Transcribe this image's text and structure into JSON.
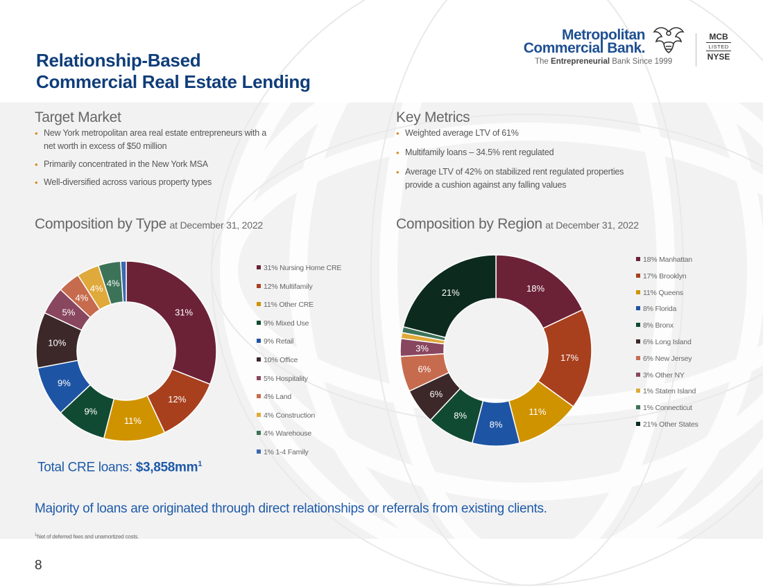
{
  "title": {
    "line1": "Relationship-Based",
    "line2": "Commercial Real Estate Lending"
  },
  "logo": {
    "name_line1": "Metropolitan",
    "name_line2": "Commercial Bank.",
    "tagline_pre": "The",
    "tagline_bold": "Entrepreneurial",
    "tagline_post": "Bank Since 1999",
    "ticker": "MCB",
    "listed": "LISTED",
    "exchange": "NYSE"
  },
  "target_market": {
    "heading": "Target Market",
    "bullets": [
      "New York metropolitan area real estate entrepreneurs with a net worth in excess of $50 million",
      "Primarily concentrated in the New York MSA",
      "Well-diversified across various property types"
    ]
  },
  "key_metrics": {
    "heading": "Key Metrics",
    "bullets": [
      "Weighted average LTV of 61%",
      "Multifamily loans – 34.5% rent regulated",
      "Average LTV of 42% on stabilized rent regulated properties provide a cushion against any falling values"
    ]
  },
  "composition_type": {
    "heading": "Composition by Type",
    "subheading": "at December 31, 2022"
  },
  "composition_region": {
    "heading": "Composition by Region",
    "subheading": "at December 31, 2022"
  },
  "chart_data": [
    {
      "type": "donut",
      "title": "Composition by Type",
      "subtitle": "at December 31, 2022",
      "unit": "%",
      "series": [
        {
          "legend": "31% Nursing Home CRE",
          "label": "31%",
          "value": 31,
          "color": "#6b2237"
        },
        {
          "legend": "12% Multifamily",
          "label": "12%",
          "value": 12,
          "color": "#a8401e"
        },
        {
          "legend": "11% Other CRE",
          "label": "11%",
          "value": 11,
          "color": "#d09300"
        },
        {
          "legend": "9% Mixed Use",
          "label": "9%",
          "value": 9,
          "color": "#114a32"
        },
        {
          "legend": "9% Retail",
          "label": "9%",
          "value": 9,
          "color": "#1e54a4"
        },
        {
          "legend": "10% Office",
          "label": "10%",
          "value": 10,
          "color": "#3c2829"
        },
        {
          "legend": "5% Hospitality",
          "label": "5%",
          "value": 5,
          "color": "#89465f"
        },
        {
          "legend": "4% Land",
          "label": "4%",
          "value": 4,
          "color": "#c76b4e"
        },
        {
          "legend": "4% Construction",
          "label": "4%",
          "value": 4,
          "color": "#e0a93b"
        },
        {
          "legend": "4% Warehouse",
          "label": "4%",
          "value": 4,
          "color": "#3c7358"
        },
        {
          "legend": "1% 1-4 Family",
          "label": "",
          "value": 1,
          "color": "#3e68b0"
        }
      ]
    },
    {
      "type": "donut",
      "title": "Composition by Region",
      "subtitle": "at December 31, 2022",
      "unit": "%",
      "series": [
        {
          "legend": "18% Manhattan",
          "label": "18%",
          "value": 18,
          "color": "#6b2237"
        },
        {
          "legend": "17% Brooklyn",
          "label": "17%",
          "value": 17,
          "color": "#a8401e"
        },
        {
          "legend": "11% Queens",
          "label": "11%",
          "value": 11,
          "color": "#d09300"
        },
        {
          "legend": "8% Florida",
          "label": "8%",
          "value": 8,
          "color": "#1e54a4"
        },
        {
          "legend": "8% Bronx",
          "label": "8%",
          "value": 8,
          "color": "#114a32"
        },
        {
          "legend": "6% Long Island",
          "label": "6%",
          "value": 6,
          "color": "#3c2829"
        },
        {
          "legend": "6% New Jersey",
          "label": "6%",
          "value": 6,
          "color": "#c76b4e"
        },
        {
          "legend": "3% Other NY",
          "label": "3%",
          "value": 3,
          "color": "#89465f"
        },
        {
          "legend": "1% Staten Island",
          "label": "",
          "value": 1,
          "color": "#e0a93b"
        },
        {
          "legend": "1% Connecticut",
          "label": "",
          "value": 1,
          "color": "#3c7358"
        },
        {
          "legend": "21% Other States",
          "label": "21%",
          "value": 21,
          "color": "#0d2a1e"
        }
      ]
    }
  ],
  "total": {
    "label": "Total CRE loans:",
    "value": "$3,858mm",
    "footnote_ref": "1"
  },
  "majority_text": "Majority of loans are originated through direct relationships or referrals from existing clients.",
  "footnote": {
    "marker": "1",
    "text": "Net of deferred fees and unamortized costs."
  },
  "page_number": "8"
}
